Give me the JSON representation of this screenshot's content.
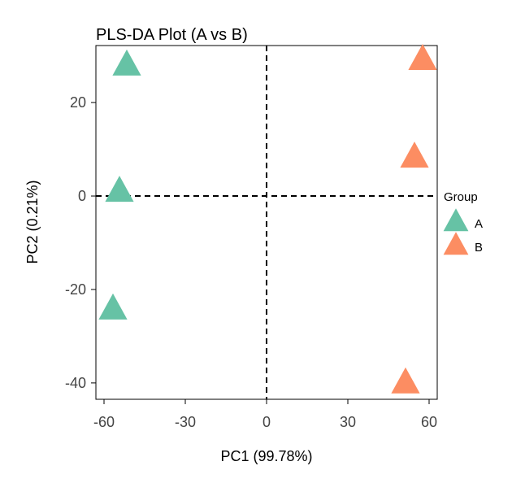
{
  "chart_data": {
    "type": "scatter",
    "title": "PLS-DA Plot (A vs B)",
    "xlabel": "PC1 (99.78%)",
    "ylabel": "PC2 (0.21%)",
    "xlim": [
      -63,
      63
    ],
    "ylim": [
      -43.5,
      32.2
    ],
    "xticks": [
      -60,
      -30,
      0,
      30,
      60
    ],
    "yticks": [
      -40,
      -20,
      0,
      20
    ],
    "grid": false,
    "reference_lines": {
      "x": 0,
      "y": 0,
      "style": "dashed"
    },
    "legend": {
      "title": "Group",
      "placement": "right"
    },
    "marker": "triangle",
    "series": [
      {
        "name": "A",
        "color": "#66C2A5",
        "points": [
          [
            -51.6,
            28.0
          ],
          [
            -54.3,
            1.0
          ],
          [
            -56.7,
            -24.2
          ]
        ]
      },
      {
        "name": "B",
        "color": "#FC8D62",
        "points": [
          [
            57.6,
            29.2
          ],
          [
            54.6,
            8.3
          ],
          [
            51.3,
            -40.0
          ]
        ]
      }
    ]
  }
}
